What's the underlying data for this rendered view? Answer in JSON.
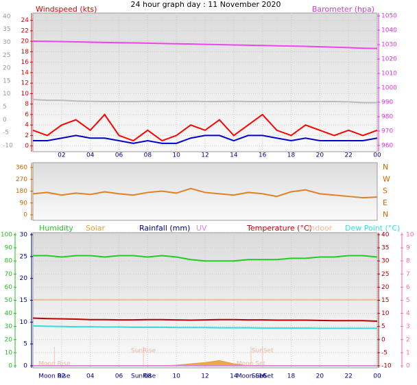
{
  "title": "24 hour graph day : 11 November 2020",
  "chart_data": [
    {
      "type": "line",
      "ylabel": "Windspeed (kts)",
      "y2label": "Barometer (hpa)",
      "axis_colors": {
        "y": "#dd0000",
        "y2": "#dd33dd",
        "y3": "#999999"
      },
      "x": [
        0,
        1,
        2,
        3,
        4,
        5,
        6,
        7,
        8,
        9,
        10,
        11,
        12,
        13,
        14,
        15,
        16,
        17,
        18,
        19,
        20,
        21,
        22,
        23,
        24
      ],
      "xlim": [
        0,
        24
      ],
      "xticks": [
        {
          "value": 2,
          "label": "02"
        },
        {
          "value": 4,
          "label": "04"
        },
        {
          "value": 6,
          "label": "06"
        },
        {
          "value": 8,
          "label": "08"
        },
        10,
        12,
        14,
        16,
        18,
        20,
        22,
        {
          "value": 24,
          "label": "00"
        }
      ],
      "ylim": [
        -0.7,
        25
      ],
      "yticks": [
        0,
        2,
        4,
        6,
        8,
        10,
        12,
        14,
        16,
        18,
        20,
        22,
        24
      ],
      "y2lim": [
        957.1,
        1050.5
      ],
      "y2ticks": [
        960,
        970,
        980,
        990,
        1000,
        1010,
        1020,
        1030,
        1040,
        1050
      ],
      "y3lim": [
        -11.6,
        40.5
      ],
      "y3ticks": [
        -10,
        -5,
        0,
        5,
        10,
        15,
        20,
        25,
        30,
        35,
        40
      ],
      "grid": true,
      "series": [
        {
          "color": "#bbbbbb",
          "axis": "y3",
          "values": [
            7.8,
            7.5,
            7.5,
            7.2,
            7.1,
            7,
            7,
            7,
            7.1,
            7,
            7,
            7.1,
            7,
            7,
            7.1,
            7,
            7,
            7,
            7.1,
            7,
            7,
            7,
            6.9,
            6.6,
            6.6
          ]
        },
        {
          "color": "#ff0000",
          "values": [
            3,
            2,
            4,
            5,
            3,
            6,
            2,
            1,
            3,
            1,
            2,
            4,
            3,
            5,
            2,
            4,
            6,
            3,
            2,
            4,
            3,
            2,
            3,
            2,
            3
          ]
        },
        {
          "color": "#0000cc",
          "values": [
            1,
            1,
            1.5,
            2,
            1.5,
            1.5,
            1,
            0.5,
            1,
            0.5,
            0.5,
            1.5,
            2,
            2,
            1,
            2,
            2,
            1.5,
            1,
            1.5,
            1,
            1,
            1,
            1,
            1.5
          ]
        },
        {
          "color": "#ee44ee",
          "axis": "y2",
          "values": [
            1032.4,
            1032.3,
            1032.1,
            1031.9,
            1031.7,
            1031.5,
            1031.3,
            1031.2,
            1031,
            1030.8,
            1030.6,
            1030.4,
            1030.2,
            1030,
            1029.8,
            1029.6,
            1029.4,
            1029.2,
            1029,
            1028.8,
            1028.5,
            1028.2,
            1027.9,
            1027.5,
            1027.3
          ]
        }
      ]
    },
    {
      "type": "line",
      "axis_colors": {
        "y": "#cc6600",
        "y2": "#cc6600"
      },
      "x": [
        0,
        1,
        2,
        3,
        4,
        5,
        6,
        7,
        8,
        9,
        10,
        11,
        12,
        13,
        14,
        15,
        16,
        17,
        18,
        19,
        20,
        21,
        22,
        23,
        24
      ],
      "xlim": [
        0,
        24
      ],
      "ylim": [
        -26,
        381
      ],
      "yticks": [
        0,
        90,
        180,
        270,
        360
      ],
      "y2lim": [
        -26,
        381
      ],
      "y2ticks": [
        {
          "value": 0,
          "label": "N"
        },
        {
          "value": 90,
          "label": "E"
        },
        {
          "value": 180,
          "label": "S"
        },
        {
          "value": 270,
          "label": "W"
        },
        {
          "value": 360,
          "label": "N"
        }
      ],
      "series": [
        {
          "color": "#e08020",
          "values": [
            160,
            170,
            150,
            165,
            155,
            175,
            160,
            150,
            170,
            180,
            165,
            200,
            170,
            160,
            150,
            170,
            160,
            140,
            175,
            190,
            160,
            150,
            140,
            130,
            135
          ]
        }
      ]
    },
    {
      "type": "line",
      "axis_colors": {
        "y": "#22bb22",
        "y2": "#aa0000",
        "y3": "#000080",
        "y4": "#ff66aa"
      },
      "x": [
        0,
        1,
        2,
        3,
        4,
        5,
        6,
        7,
        8,
        9,
        10,
        11,
        12,
        13,
        14,
        15,
        16,
        17,
        18,
        19,
        20,
        21,
        22,
        23,
        24
      ],
      "xlim": [
        0,
        24
      ],
      "xticks": [
        {
          "value": 2,
          "label": "02"
        },
        {
          "value": 4,
          "label": "04"
        },
        {
          "value": 6,
          "label": "06"
        },
        {
          "value": 8,
          "label": "08"
        },
        10,
        12,
        14,
        16,
        18,
        20,
        22,
        {
          "value": 24,
          "label": "00"
        }
      ],
      "ylim": [
        0,
        100
      ],
      "yticks": [
        0,
        10,
        20,
        30,
        40,
        50,
        60,
        70,
        80,
        90,
        100
      ],
      "y2lim": [
        -10,
        40
      ],
      "y2ticks": [
        -10,
        -5,
        0,
        5,
        10,
        15,
        20,
        25,
        30,
        35,
        40
      ],
      "y3lim": [
        0,
        30
      ],
      "y3ticks": [
        0,
        5,
        10,
        15,
        20,
        25,
        30
      ],
      "y4lim": [
        0,
        10
      ],
      "y4ticks": [
        0,
        1,
        2,
        3,
        4,
        5,
        6,
        7,
        8,
        9,
        10
      ],
      "grid": true,
      "series": [
        {
          "name": "Humidity",
          "color": "#22cc22",
          "values": [
            84,
            84,
            83,
            84,
            84,
            83,
            84,
            84,
            83,
            84,
            83,
            81,
            80,
            80,
            80,
            81,
            81,
            81,
            82,
            82,
            83,
            83,
            84,
            84,
            83
          ]
        },
        {
          "name": "Solar",
          "color": "#e0a030",
          "fill": true,
          "values": [
            0,
            0,
            0,
            0,
            0,
            0,
            0,
            0,
            0,
            0,
            0.5,
            1.5,
            2.5,
            4,
            1.5,
            0,
            0,
            0,
            0,
            0,
            0,
            0,
            0,
            0,
            0
          ]
        },
        {
          "name": "Rainfall (mm)",
          "color": "#000080",
          "axis": "y3",
          "values": [
            0,
            0,
            0,
            0,
            0,
            0,
            0,
            0,
            0,
            0,
            0,
            0,
            0,
            0,
            0,
            0,
            0,
            0,
            0,
            0,
            0,
            0,
            0,
            0,
            0
          ]
        },
        {
          "name": "UV",
          "color": "#dd88dd",
          "axis": "y4",
          "values": [
            0,
            0,
            0,
            0,
            0,
            0,
            0,
            0,
            0,
            0,
            0,
            0,
            0,
            0,
            0,
            0,
            0,
            0,
            0,
            0,
            0,
            0,
            0,
            0,
            0
          ]
        },
        {
          "name": "Temperature (°C)",
          "color": "#bb0000",
          "axis": "y2",
          "values": [
            8.2,
            8,
            7.9,
            7.8,
            7.6,
            7.6,
            7.5,
            7.5,
            7.6,
            7.6,
            7.5,
            7.4,
            7.5,
            7.6,
            7.6,
            7.5,
            7.5,
            7.4,
            7.4,
            7.4,
            7.3,
            7.2,
            7.2,
            7.2,
            7
          ]
        },
        {
          "name": "Indoor",
          "color": "#f5b89a",
          "axis": "y2",
          "values": [
            15.2,
            15.2,
            15.2,
            15.2,
            15.2,
            15.2,
            15.2,
            15.2,
            15.2,
            15.2,
            15.2,
            15.2,
            15.2,
            15.2,
            15.2,
            15.2,
            15.2,
            15.2,
            15.2,
            15.2,
            15.2,
            15.2,
            15.2,
            15.2,
            15.2
          ]
        },
        {
          "name": "Dew Point (°C)",
          "color": "#33dddd",
          "axis": "y2",
          "values": [
            5.2,
            5.1,
            5,
            4.9,
            4.9,
            4.8,
            4.8,
            4.7,
            4.7,
            4.7,
            4.6,
            4.6,
            4.6,
            4.5,
            4.5,
            4.5,
            4.4,
            4.4,
            4.4,
            4.4,
            4.3,
            4.3,
            4.3,
            4.3,
            4.3
          ]
        }
      ],
      "annotations": [
        {
          "text": "Moon Rise",
          "x": 1.5
        },
        {
          "text": "SunRise",
          "x": 7.7
        },
        {
          "text": "Moon Set",
          "x": 15.2
        },
        {
          "text": "SunSet",
          "x": 16.0
        }
      ]
    }
  ]
}
